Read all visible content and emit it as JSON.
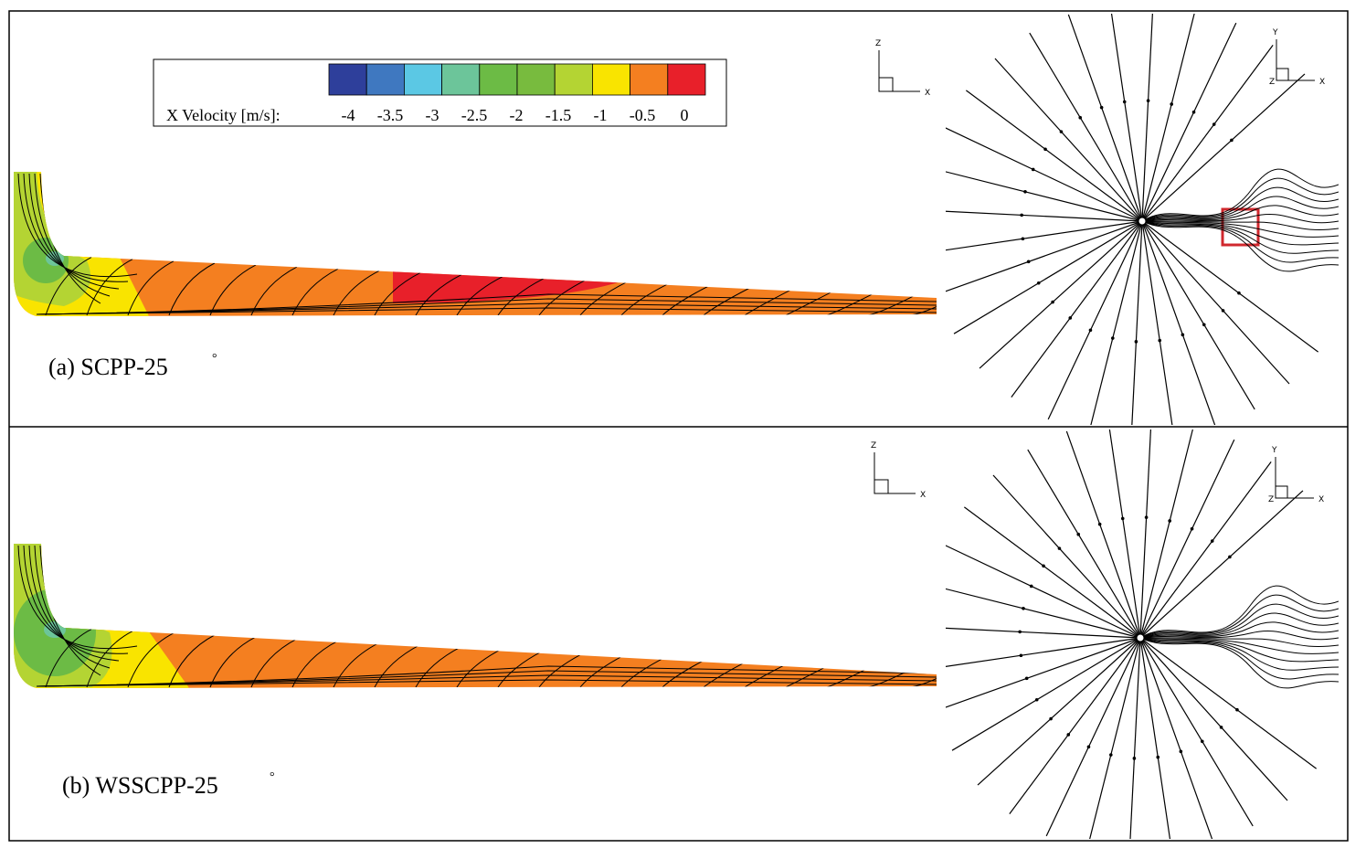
{
  "legend": {
    "title": "X Velocity [m/s]:",
    "labels": [
      "-4",
      "-3.5",
      "-3",
      "-2.5",
      "-2",
      "-1.5",
      "-1",
      "-0.5",
      "0"
    ],
    "colors": [
      "#2e3f9b",
      "#3f78c0",
      "#5bc8e4",
      "#6cc59a",
      "#6cbb45",
      "#78bb3e",
      "#b4d433",
      "#f9e400",
      "#f47f20",
      "#e8202a"
    ]
  },
  "panels": [
    {
      "label": "(a) SCPP-25",
      "degree": "°",
      "side_axes": {
        "vertical": "Z",
        "horizontal": "X"
      },
      "top_axes": {
        "vertical": "Y",
        "horizontal": "X",
        "out": "Z"
      }
    },
    {
      "label": "(b) WSSCPP-25",
      "degree": "°",
      "side_axes": {
        "vertical": "Z",
        "horizontal": "X"
      },
      "top_axes": {
        "vertical": "Y",
        "horizontal": "X",
        "out": "Z"
      }
    }
  ]
}
